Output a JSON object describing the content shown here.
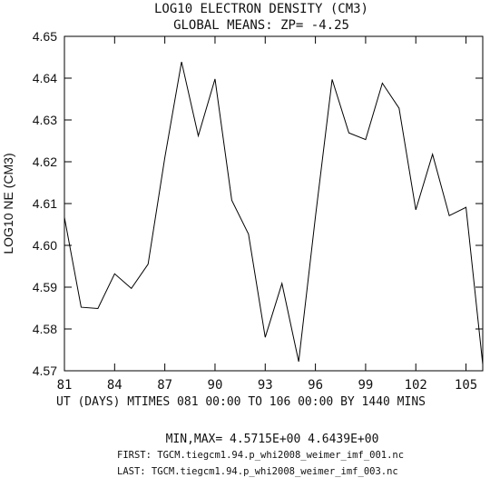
{
  "chart_data": {
    "type": "line",
    "title": "LOG10 ELECTRON DENSITY (CM3)",
    "subtitle": "GLOBAL MEANS: ZP= -4.25",
    "xlabel": "UT (DAYS) MTIMES 081 00:00 TO 106 00:00 BY 1440 MINS",
    "ylabel": "LOG10 NE (CM3)",
    "xlim": [
      81,
      106
    ],
    "ylim": [
      4.57,
      4.65
    ],
    "grid": false,
    "x_ticks": [
      81,
      84,
      87,
      90,
      93,
      96,
      99,
      102,
      105
    ],
    "x_tick_labels": [
      "81",
      "84",
      "87",
      "90",
      "93",
      "96",
      "99",
      "102",
      "105"
    ],
    "y_ticks": [
      4.57,
      4.58,
      4.59,
      4.6,
      4.61,
      4.62,
      4.63,
      4.64,
      4.65
    ],
    "y_tick_labels": [
      "4.57",
      "4.58",
      "4.59",
      "4.60",
      "4.61",
      "4.62",
      "4.63",
      "4.64",
      "4.65"
    ],
    "x": [
      81,
      82,
      83,
      84,
      85,
      86,
      87,
      88,
      89,
      90,
      91,
      92,
      93,
      94,
      95,
      96,
      97,
      98,
      99,
      100,
      101,
      102,
      103,
      104,
      105,
      106
    ],
    "y": [
      4.6067,
      4.5852,
      4.5849,
      4.5932,
      4.5897,
      4.5955,
      4.621,
      4.6439,
      4.6262,
      4.6398,
      4.6108,
      4.6027,
      4.578,
      4.5909,
      4.5722,
      4.6068,
      4.6397,
      4.6269,
      4.6253,
      4.6388,
      4.6328,
      4.6085,
      4.6218,
      4.6071,
      4.6091,
      4.5715
    ]
  },
  "footer": {
    "minmax": "MIN,MAX=  4.5715E+00  4.6439E+00",
    "first": "FIRST: TGCM.tiegcm1.94.p_whi2008_weimer_imf_001.nc",
    "last": "LAST:  TGCM.tiegcm1.94.p_whi2008_weimer_imf_003.nc"
  }
}
